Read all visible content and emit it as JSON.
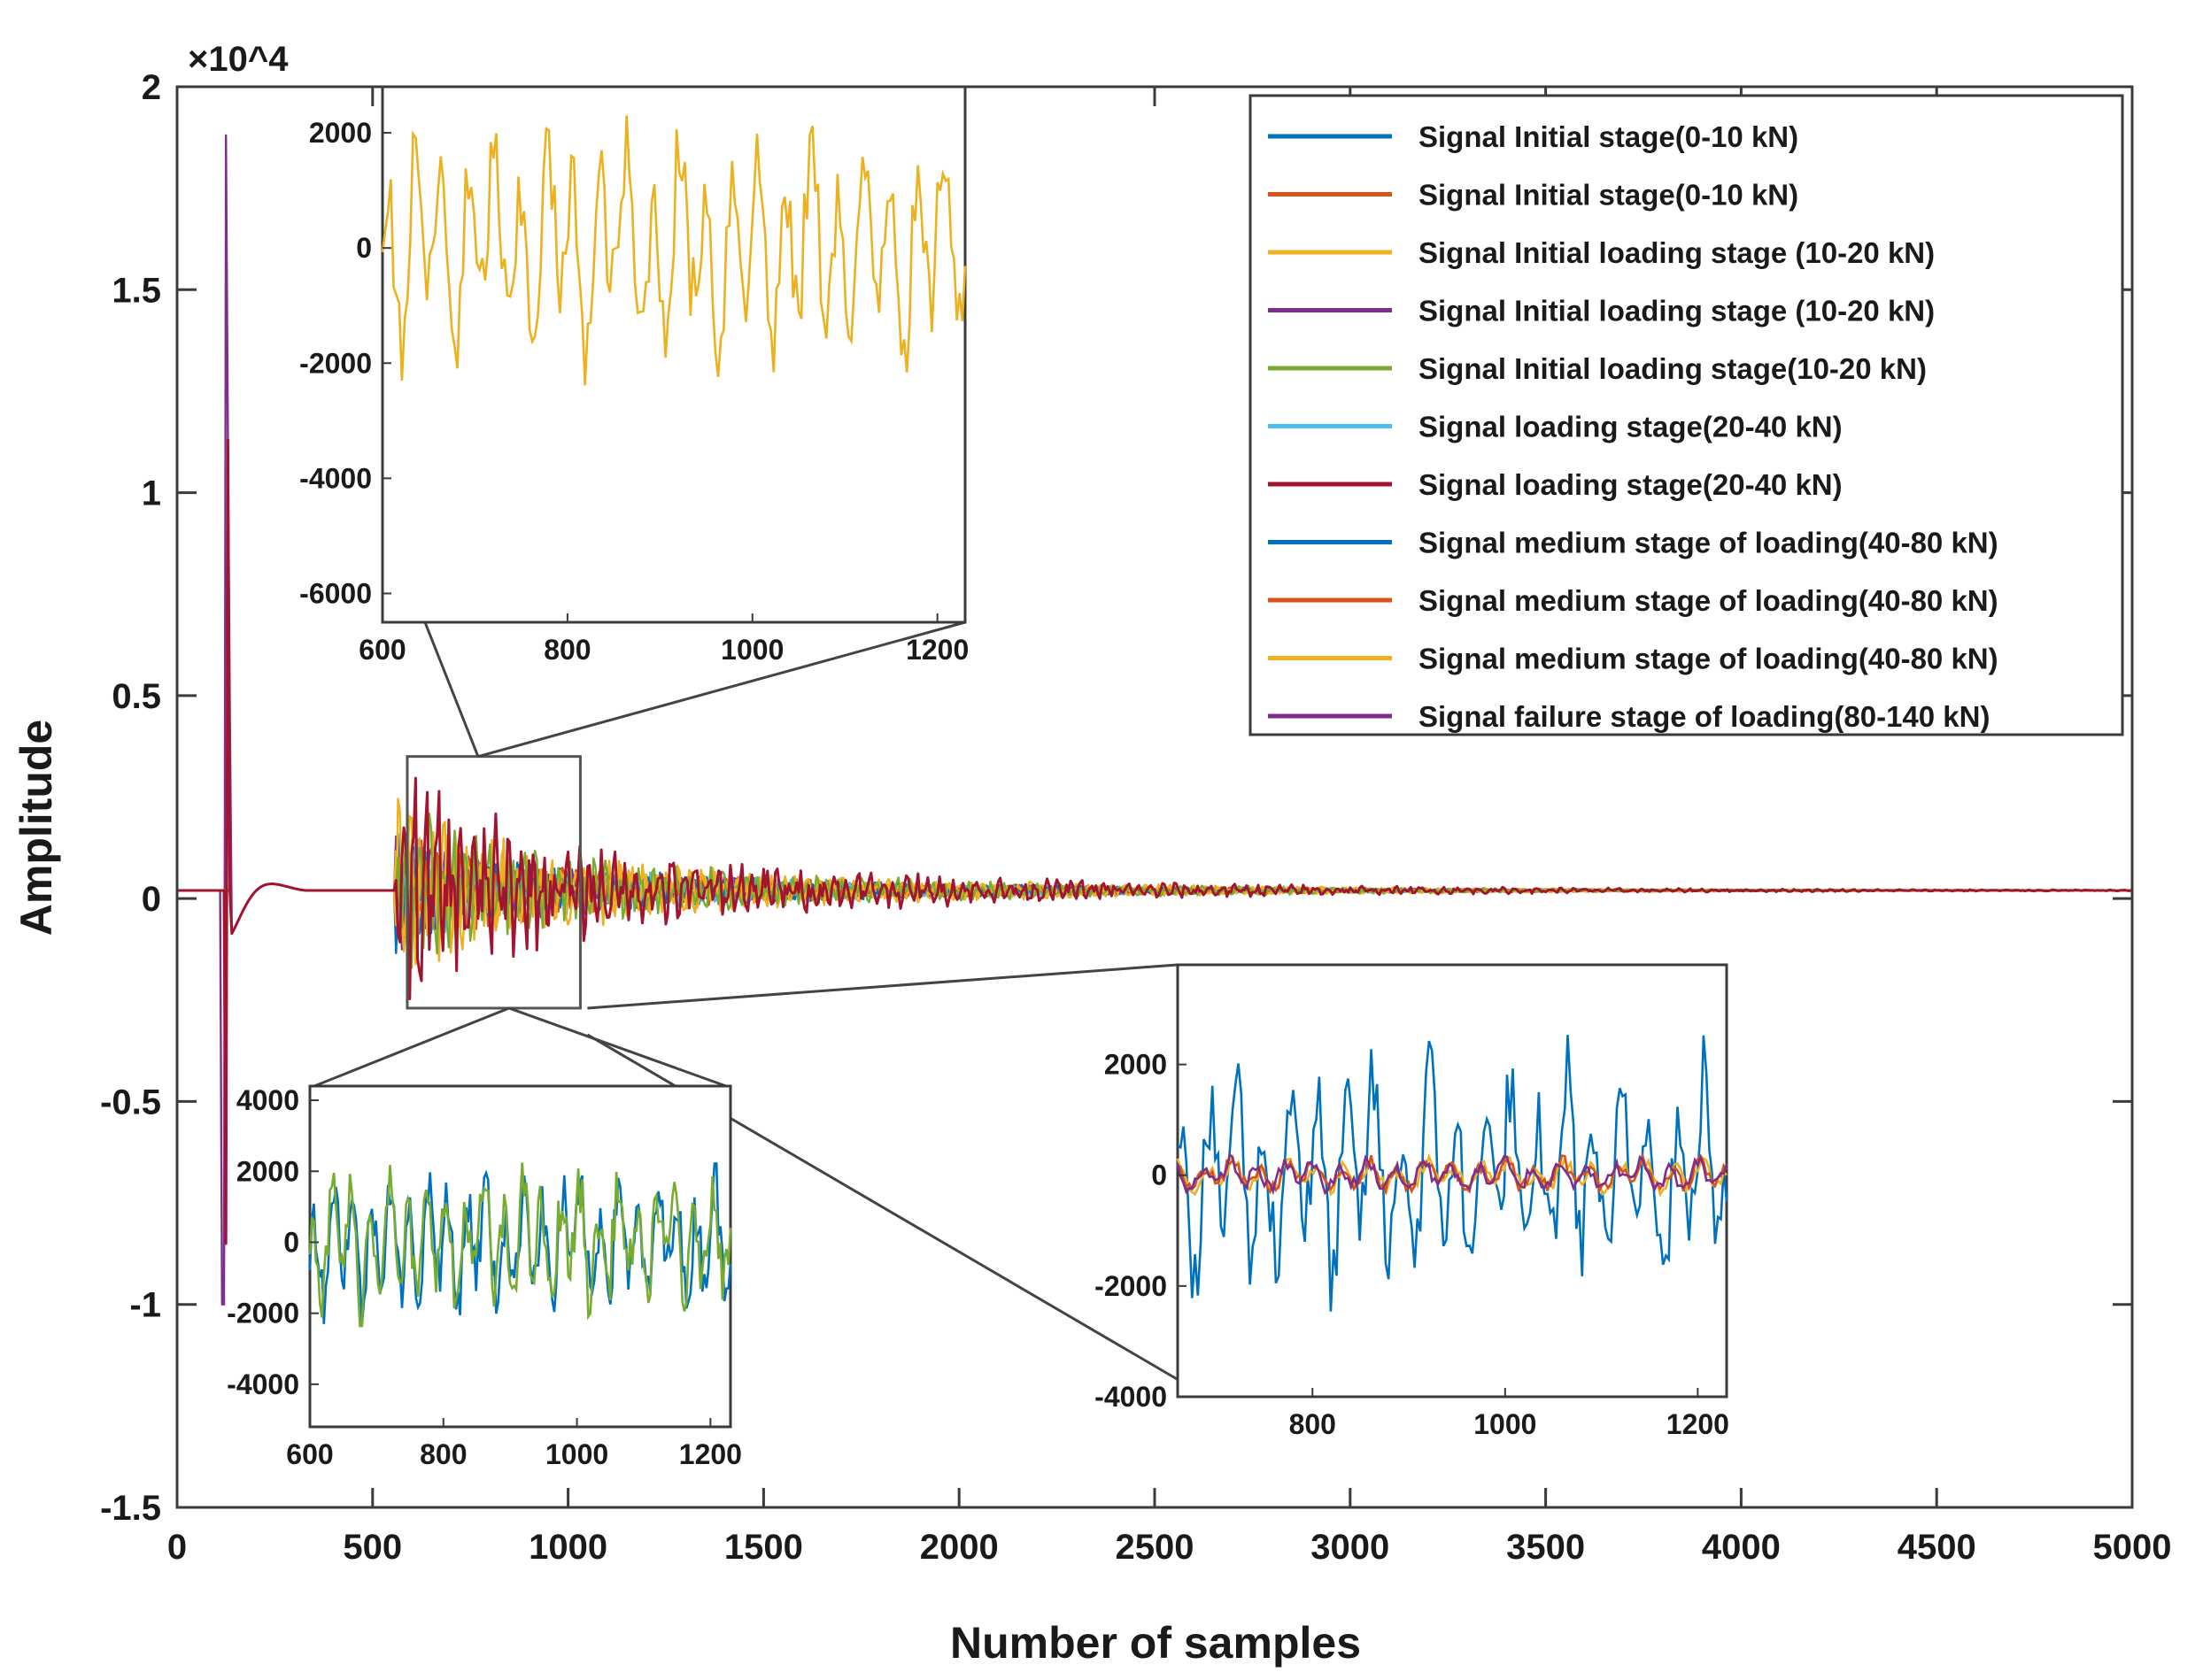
{
  "chart_data": {
    "type": "line",
    "xlabel": "Number of samples",
    "ylabel": "Amplitude",
    "y_multiplier_label": "×10^4",
    "xlim": [
      0,
      5000
    ],
    "ylim": [
      -1.5,
      2
    ],
    "x_ticks": [
      0,
      500,
      1000,
      1500,
      2000,
      2500,
      3000,
      3500,
      4000,
      4500,
      5000
    ],
    "y_ticks": [
      -1.5,
      -1,
      -0.5,
      0,
      0.5,
      1,
      1.5,
      2
    ],
    "x_tick_labels": [
      "0",
      "500",
      "1000",
      "1500",
      "2000",
      "2500",
      "3000",
      "3500",
      "4000",
      "4500",
      "5000"
    ],
    "y_tick_labels": [
      "-1.5",
      "-1",
      "-0.5",
      "0",
      "0.5",
      "1",
      "1.5",
      "2"
    ],
    "grid": false,
    "legend_position": "top-right",
    "series": [
      {
        "name": "Signal Initial stage(0-10 kN)",
        "color": "#0072BD"
      },
      {
        "name": "Signal Initial stage(0-10 kN)",
        "color": "#D95319"
      },
      {
        "name": "Signal Initial loading stage (10-20 kN)",
        "color": "#EDB120"
      },
      {
        "name": "Signal Initial loading stage (10-20 kN)",
        "color": "#7E2F8E"
      },
      {
        "name": "Signal Initial loading stage(10-20 kN)",
        "color": "#77AC30"
      },
      {
        "name": "Signal loading stage(20-40 kN)",
        "color": "#4DBEEE"
      },
      {
        "name": "Signal loading stage(20-40 kN)",
        "color": "#A2142F"
      },
      {
        "name": "Signal medium stage of loading(40-80 kN)",
        "color": "#0072BD"
      },
      {
        "name": "Signal medium stage of loading(40-80 kN)",
        "color": "#D95319"
      },
      {
        "name": "Signal medium stage of loading(40-80 kN)",
        "color": "#EDB120"
      },
      {
        "name": "Signal failure stage of loading(80-140 kN)",
        "color": "#7E2F8E"
      }
    ],
    "spike": {
      "x": 130,
      "peak": 1.88,
      "trough": -1.0,
      "secondary_peak": 1.13
    },
    "burst": {
      "x_start": 560,
      "x_end": 5000,
      "max_amplitude": 0.27
    },
    "zoom_region": {
      "x": [
        600,
        1020
      ],
      "y": [
        -0.27,
        0.35
      ]
    },
    "insets": [
      {
        "name": "top-inset",
        "xlim": [
          600,
          1230
        ],
        "ylim": [
          -6500,
          2800
        ],
        "x_ticks": [
          600,
          800,
          1000,
          1200
        ],
        "y_ticks": [
          -6000,
          -4000,
          -2000,
          0,
          2000
        ],
        "x_tick_labels": [
          "600",
          "800",
          "1000",
          "1200"
        ],
        "y_tick_labels": [
          "-6000",
          "-4000",
          "-2000",
          "0",
          "2000"
        ],
        "series_colors": [
          "#EDB120"
        ],
        "amplitude": 2200
      },
      {
        "name": "bottom-left-inset",
        "xlim": [
          600,
          1230
        ],
        "ylim": [
          -5200,
          4400
        ],
        "x_ticks": [
          600,
          800,
          1000,
          1200
        ],
        "y_ticks": [
          -4000,
          -2000,
          0,
          2000,
          4000
        ],
        "x_tick_labels": [
          "600",
          "800",
          "1000",
          "1200"
        ],
        "y_tick_labels": [
          "-4000",
          "-2000",
          "0",
          "2000",
          "4000"
        ],
        "series_colors": [
          "#0072BD",
          "#77AC30"
        ],
        "amplitude": 2200
      },
      {
        "name": "bottom-right-inset",
        "xlim": [
          660,
          1230
        ],
        "ylim": [
          -4000,
          3800
        ],
        "x_ticks": [
          800,
          1000,
          1200
        ],
        "y_ticks": [
          -4000,
          -2000,
          0,
          2000
        ],
        "x_tick_labels": [
          "800",
          "1000",
          "1200"
        ],
        "y_tick_labels": [
          "-4000",
          "-2000",
          "0",
          "2000"
        ],
        "series_colors": [
          "#0072BD",
          "#EDB120",
          "#D95319",
          "#7E2F8E"
        ],
        "amplitude": 2300
      }
    ]
  }
}
